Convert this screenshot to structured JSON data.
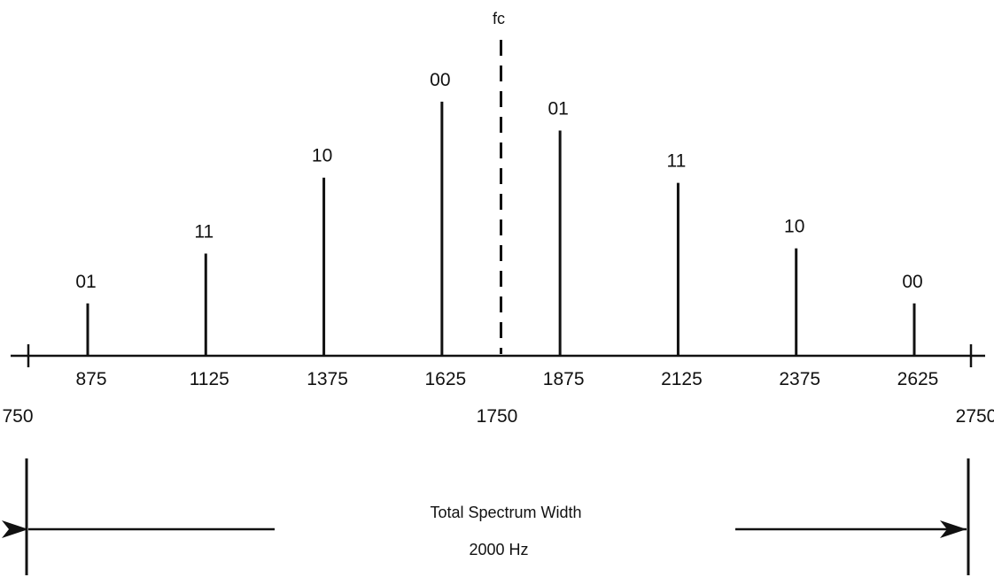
{
  "carrier": {
    "label": "fc",
    "frequency": 1750,
    "frequency_label": "1750"
  },
  "spectrum": {
    "x_min": 750,
    "x_max": 2750,
    "x_min_label": "750",
    "x_max_label": "2750",
    "tones": [
      {
        "frequency": 875,
        "freq_label": "875",
        "code": "01",
        "amplitude": 0.2
      },
      {
        "frequency": 1125,
        "freq_label": "1125",
        "code": "11",
        "amplitude": 0.39
      },
      {
        "frequency": 1375,
        "freq_label": "1375",
        "code": "10",
        "amplitude": 0.68
      },
      {
        "frequency": 1625,
        "freq_label": "1625",
        "code": "00",
        "amplitude": 0.97
      },
      {
        "frequency": 1875,
        "freq_label": "1875",
        "code": "01",
        "amplitude": 0.86
      },
      {
        "frequency": 2125,
        "freq_label": "2125",
        "code": "11",
        "amplitude": 0.66
      },
      {
        "frequency": 2375,
        "freq_label": "2375",
        "code": "10",
        "amplitude": 0.41
      },
      {
        "frequency": 2625,
        "freq_label": "2625",
        "code": "00",
        "amplitude": 0.2
      }
    ]
  },
  "width_annotation": {
    "line1": "Total Spectrum Width",
    "line2": "2000 Hz"
  },
  "colors": {
    "ink": "#111111",
    "background": "#ffffff"
  }
}
